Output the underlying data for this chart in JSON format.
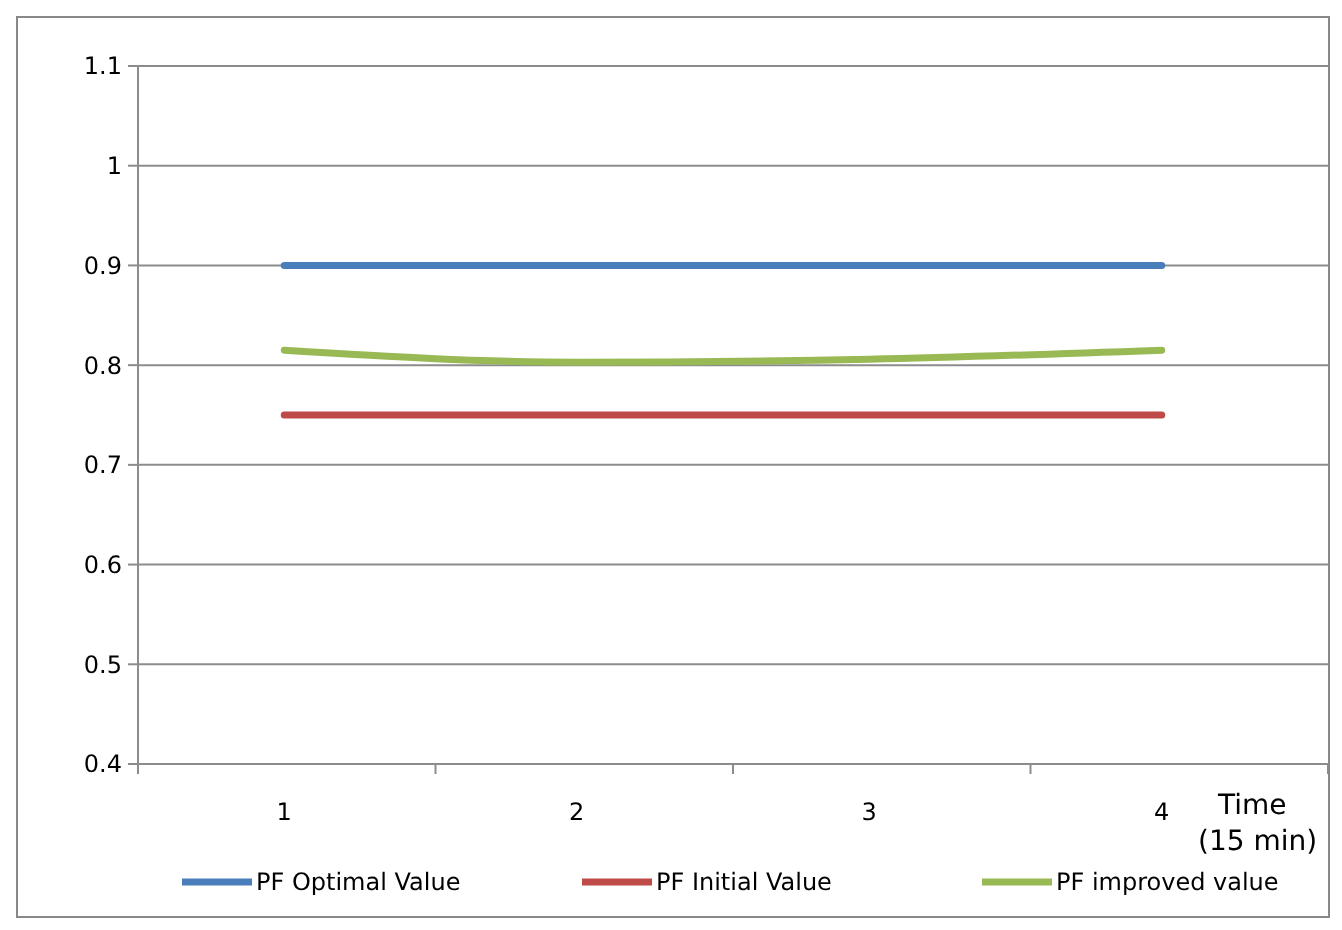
{
  "chart_data": {
    "type": "line",
    "xlabel": "Time (15 min)",
    "categories": [
      "1",
      "2",
      "3",
      "4"
    ],
    "series": [
      {
        "name": "PF Optimal Value",
        "color": "#4a7ebb",
        "values": [
          0.9,
          0.9,
          0.9,
          0.9
        ]
      },
      {
        "name": "PF Initial Value",
        "color": "#be4b48",
        "values": [
          0.75,
          0.75,
          0.75,
          0.75
        ]
      },
      {
        "name": "PF improved value",
        "color": "#98b954",
        "values": [
          0.815,
          0.803,
          0.806,
          0.815
        ]
      }
    ],
    "ylim": [
      0.4,
      1.1
    ],
    "yticks": [
      0.4,
      0.5,
      0.6,
      0.7,
      0.8,
      0.9,
      1,
      1.1
    ],
    "grid": "y",
    "legend": "bottom",
    "marker": "none",
    "line_style": "solid"
  }
}
